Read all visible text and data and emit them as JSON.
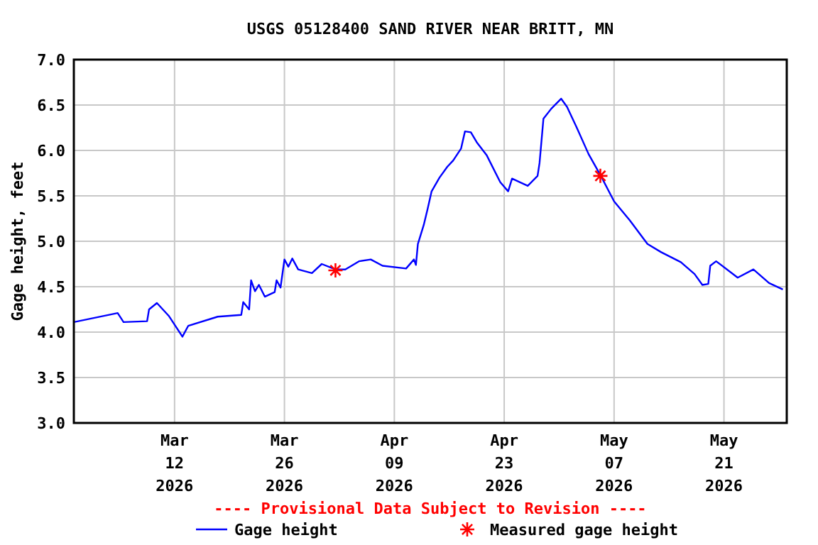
{
  "chart_data": {
    "type": "line",
    "title": "USGS 05128400 SAND RIVER NEAR BRITT, MN",
    "ylabel": "Gage height, feet",
    "annotations": [
      "---- Provisional Data Subject to Revision ----"
    ],
    "xlim": [
      "2026-02-27T04:00",
      "2026-05-29T00:00"
    ],
    "xticks": [
      {
        "value": "2026-03-12",
        "label": "Mar\n12\n2026"
      },
      {
        "value": "2026-03-26",
        "label": "Mar\n26\n2026"
      },
      {
        "value": "2026-04-09",
        "label": "Apr\n09\n2026"
      },
      {
        "value": "2026-04-23",
        "label": "Apr\n23\n2026"
      },
      {
        "value": "2026-05-07",
        "label": "May\n07\n2026"
      },
      {
        "value": "2026-05-21",
        "label": "May\n21\n2026"
      }
    ],
    "ylim": [
      3.0,
      7.0
    ],
    "yticks": [
      {
        "value": 3,
        "label": "3.0"
      },
      {
        "value": 3.5,
        "label": "3.5"
      },
      {
        "value": 4,
        "label": "4.0"
      },
      {
        "value": 4.5,
        "label": "4.5"
      },
      {
        "value": 5,
        "label": "5.0"
      },
      {
        "value": 5.5,
        "label": "5.5"
      },
      {
        "value": 6,
        "label": "6.0"
      },
      {
        "value": 6.5,
        "label": "6.5"
      },
      {
        "value": 7,
        "label": "7.0"
      }
    ],
    "grid": true,
    "legend": "bottom",
    "series": [
      {
        "name": "Gage height",
        "color": "#0000ff",
        "marker": "none",
        "line_style": "solid",
        "x": [
          "2026-02-27T04:00",
          "2026-03-04T18:00",
          "2026-03-05T12:00",
          "2026-03-08T12:00",
          "2026-03-08T18:00",
          "2026-03-09T18:00",
          "2026-03-11T06:00",
          "2026-03-13T00:00",
          "2026-03-13T18:00",
          "2026-03-17T12:00",
          "2026-03-20T12:00",
          "2026-03-20T18:00",
          "2026-03-21T12:00",
          "2026-03-21T18:00",
          "2026-03-22T06:00",
          "2026-03-22T18:00",
          "2026-03-23T12:00",
          "2026-03-24T18:00",
          "2026-03-25T00:00",
          "2026-03-25T12:00",
          "2026-03-26T00:00",
          "2026-03-26T12:00",
          "2026-03-27T00:00",
          "2026-03-27T18:00",
          "2026-03-29T12:00",
          "2026-03-30T18:00",
          "2026-04-01T12:00",
          "2026-04-02T18:00",
          "2026-04-04T12:00",
          "2026-04-06T00:00",
          "2026-04-07T12:00",
          "2026-04-10T12:00",
          "2026-04-11T12:00",
          "2026-04-11T18:00",
          "2026-04-12T00:00",
          "2026-04-12T18:00",
          "2026-04-13T06:00",
          "2026-04-13T18:00",
          "2026-04-14T18:00",
          "2026-04-15T18:00",
          "2026-04-16T12:00",
          "2026-04-17T12:00",
          "2026-04-18T00:00",
          "2026-04-18T18:00",
          "2026-04-19T12:00",
          "2026-04-20T18:00",
          "2026-04-22T12:00",
          "2026-04-23T12:00",
          "2026-04-24T00:00",
          "2026-04-26T00:00",
          "2026-04-27T06:00",
          "2026-04-27T12:00",
          "2026-04-28T00:00",
          "2026-04-29T00:00",
          "2026-04-30T06:00",
          "2026-05-01T00:00",
          "2026-05-02T06:00",
          "2026-05-03T18:00",
          "2026-05-05T06:00",
          "2026-05-07T00:00",
          "2026-05-09T00:00",
          "2026-05-11T06:00",
          "2026-05-13T00:00",
          "2026-05-15T12:00",
          "2026-05-17T06:00",
          "2026-05-18T06:00",
          "2026-05-19T00:00",
          "2026-05-19T06:00",
          "2026-05-20T00:00",
          "2026-05-22T18:00",
          "2026-05-24T18:00",
          "2026-05-26T18:00",
          "2026-05-28T12:00"
        ],
        "values": [
          4.11,
          4.21,
          4.11,
          4.12,
          4.25,
          4.32,
          4.18,
          3.95,
          4.07,
          4.17,
          4.19,
          4.33,
          4.25,
          4.57,
          4.45,
          4.52,
          4.39,
          4.44,
          4.57,
          4.49,
          4.8,
          4.72,
          4.81,
          4.69,
          4.65,
          4.75,
          4.69,
          4.69,
          4.78,
          4.8,
          4.73,
          4.7,
          4.8,
          4.74,
          4.97,
          5.18,
          5.36,
          5.55,
          5.7,
          5.82,
          5.89,
          6.02,
          6.21,
          6.2,
          6.09,
          5.95,
          5.65,
          5.55,
          5.69,
          5.61,
          5.72,
          5.86,
          6.35,
          6.46,
          6.57,
          6.48,
          6.25,
          5.96,
          5.73,
          5.44,
          5.23,
          4.97,
          4.88,
          4.77,
          4.64,
          4.52,
          4.53,
          4.73,
          4.78,
          4.6,
          4.69,
          4.54,
          4.47
        ]
      },
      {
        "name": "Measured gage height",
        "type": "scatter",
        "color": "#ff0000",
        "marker": "cross",
        "x": [
          "2026-04-01T12:00",
          "2026-05-05T06:00"
        ],
        "values": [
          4.68,
          5.72
        ]
      }
    ]
  }
}
